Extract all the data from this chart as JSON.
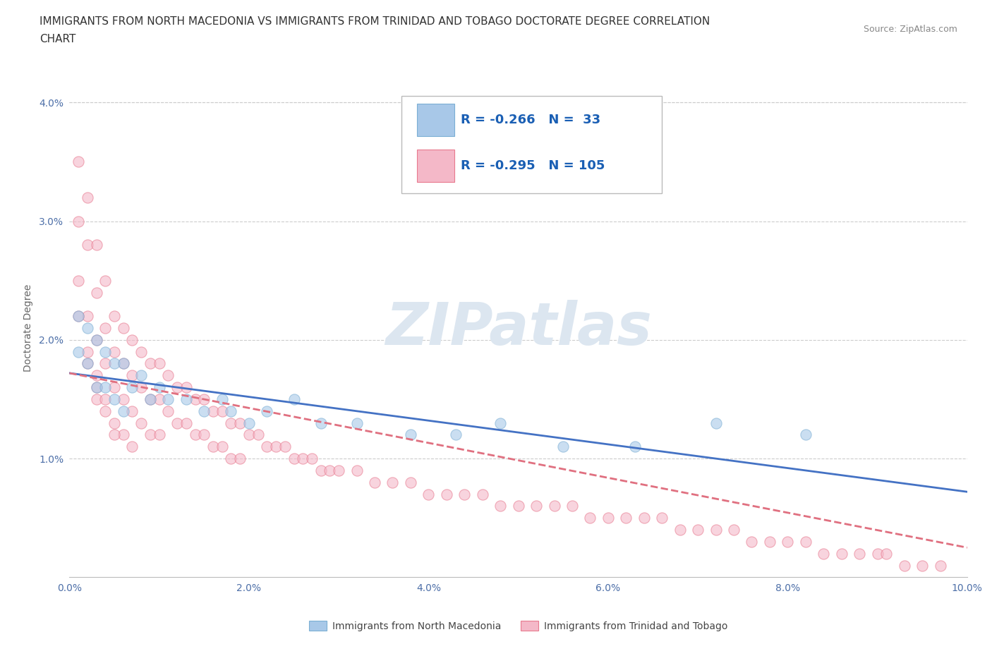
{
  "title_line1": "IMMIGRANTS FROM NORTH MACEDONIA VS IMMIGRANTS FROM TRINIDAD AND TOBAGO DOCTORATE DEGREE CORRELATION",
  "title_line2": "CHART",
  "source": "Source: ZipAtlas.com",
  "ylabel": "Doctorate Degree",
  "series": [
    {
      "name": "Immigrants from North Macedonia",
      "color": "#a8c8e8",
      "edge_color": "#7bafd4",
      "R": -0.266,
      "N": 33,
      "x": [
        0.001,
        0.001,
        0.002,
        0.002,
        0.003,
        0.003,
        0.004,
        0.004,
        0.005,
        0.005,
        0.006,
        0.006,
        0.007,
        0.008,
        0.009,
        0.01,
        0.011,
        0.013,
        0.015,
        0.017,
        0.018,
        0.02,
        0.022,
        0.025,
        0.028,
        0.032,
        0.038,
        0.043,
        0.048,
        0.055,
        0.063,
        0.072,
        0.082
      ],
      "y": [
        0.022,
        0.019,
        0.021,
        0.018,
        0.02,
        0.016,
        0.019,
        0.016,
        0.018,
        0.015,
        0.018,
        0.014,
        0.016,
        0.017,
        0.015,
        0.016,
        0.015,
        0.015,
        0.014,
        0.015,
        0.014,
        0.013,
        0.014,
        0.015,
        0.013,
        0.013,
        0.012,
        0.012,
        0.013,
        0.011,
        0.011,
        0.013,
        0.012
      ]
    },
    {
      "name": "Immigrants from Trinidad and Tobago",
      "color": "#f4b8c8",
      "edge_color": "#e87a8f",
      "R": -0.295,
      "N": 105,
      "x": [
        0.001,
        0.001,
        0.001,
        0.002,
        0.002,
        0.002,
        0.002,
        0.003,
        0.003,
        0.003,
        0.003,
        0.003,
        0.004,
        0.004,
        0.004,
        0.004,
        0.005,
        0.005,
        0.005,
        0.005,
        0.006,
        0.006,
        0.006,
        0.006,
        0.007,
        0.007,
        0.007,
        0.007,
        0.008,
        0.008,
        0.008,
        0.009,
        0.009,
        0.009,
        0.01,
        0.01,
        0.01,
        0.011,
        0.011,
        0.012,
        0.012,
        0.013,
        0.013,
        0.014,
        0.014,
        0.015,
        0.015,
        0.016,
        0.016,
        0.017,
        0.017,
        0.018,
        0.018,
        0.019,
        0.019,
        0.02,
        0.021,
        0.022,
        0.023,
        0.024,
        0.025,
        0.026,
        0.027,
        0.028,
        0.029,
        0.03,
        0.032,
        0.034,
        0.036,
        0.038,
        0.04,
        0.042,
        0.044,
        0.046,
        0.048,
        0.05,
        0.052,
        0.054,
        0.056,
        0.058,
        0.06,
        0.062,
        0.064,
        0.066,
        0.068,
        0.07,
        0.072,
        0.074,
        0.076,
        0.078,
        0.08,
        0.082,
        0.084,
        0.086,
        0.088,
        0.09,
        0.091,
        0.093,
        0.095,
        0.097,
        0.001,
        0.002,
        0.003,
        0.004,
        0.005
      ],
      "y": [
        0.035,
        0.03,
        0.025,
        0.032,
        0.028,
        0.022,
        0.019,
        0.028,
        0.024,
        0.02,
        0.017,
        0.015,
        0.025,
        0.021,
        0.018,
        0.015,
        0.022,
        0.019,
        0.016,
        0.013,
        0.021,
        0.018,
        0.015,
        0.012,
        0.02,
        0.017,
        0.014,
        0.011,
        0.019,
        0.016,
        0.013,
        0.018,
        0.015,
        0.012,
        0.018,
        0.015,
        0.012,
        0.017,
        0.014,
        0.016,
        0.013,
        0.016,
        0.013,
        0.015,
        0.012,
        0.015,
        0.012,
        0.014,
        0.011,
        0.014,
        0.011,
        0.013,
        0.01,
        0.013,
        0.01,
        0.012,
        0.012,
        0.011,
        0.011,
        0.011,
        0.01,
        0.01,
        0.01,
        0.009,
        0.009,
        0.009,
        0.009,
        0.008,
        0.008,
        0.008,
        0.007,
        0.007,
        0.007,
        0.007,
        0.006,
        0.006,
        0.006,
        0.006,
        0.006,
        0.005,
        0.005,
        0.005,
        0.005,
        0.005,
        0.004,
        0.004,
        0.004,
        0.004,
        0.003,
        0.003,
        0.003,
        0.003,
        0.002,
        0.002,
        0.002,
        0.002,
        0.002,
        0.001,
        0.001,
        0.001,
        0.022,
        0.018,
        0.016,
        0.014,
        0.012
      ]
    }
  ],
  "trend_blue": {
    "x_start": 0.0,
    "x_end": 0.1,
    "y_start": 0.0172,
    "y_end": 0.0072,
    "color": "#4472c4",
    "lw": 2.0,
    "ls": "-"
  },
  "trend_pink": {
    "x_start": 0.0,
    "x_end": 0.1,
    "y_start": 0.0172,
    "y_end": 0.0025,
    "color": "#e07080",
    "lw": 2.0,
    "ls": "--"
  },
  "xlim": [
    0.0,
    0.1
  ],
  "ylim": [
    0.0,
    0.042
  ],
  "xticks": [
    0.0,
    0.02,
    0.04,
    0.06,
    0.08,
    0.1
  ],
  "xtick_labels": [
    "0.0%",
    "2.0%",
    "4.0%",
    "6.0%",
    "8.0%",
    "10.0%"
  ],
  "yticks": [
    0.0,
    0.01,
    0.02,
    0.03,
    0.04
  ],
  "ytick_labels": [
    "",
    "1.0%",
    "2.0%",
    "3.0%",
    "4.0%"
  ],
  "grid_color": "#cccccc",
  "background_color": "#ffffff",
  "watermark": "ZIPatlas",
  "watermark_color": "#dce6f0",
  "legend_R_color": "#1a5fb4",
  "legend_text_color": "#1a5fb4",
  "title_fontsize": 11,
  "axis_label_fontsize": 10,
  "tick_fontsize": 10,
  "dot_size": 120,
  "dot_alpha": 0.6
}
